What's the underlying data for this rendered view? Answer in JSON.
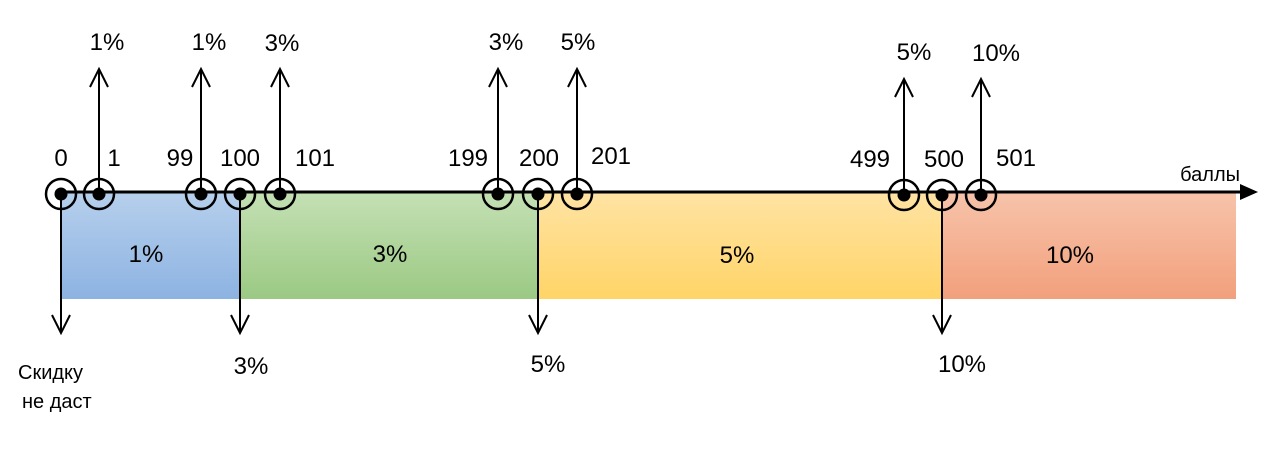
{
  "axis": {
    "label": "баллы"
  },
  "bands": [
    {
      "label": "1%",
      "color_top": "#b6cfec",
      "color_bottom": "#8db3e2"
    },
    {
      "label": "3%",
      "color_top": "#c4e0b4",
      "color_bottom": "#9bc983"
    },
    {
      "label": "5%",
      "color_top": "#ffe3a3",
      "color_bottom": "#ffd467"
    },
    {
      "label": "10%",
      "color_top": "#f7c3aa",
      "color_bottom": "#f2a07c"
    }
  ],
  "points": [
    {
      "value": "0",
      "arrow": "down",
      "result": "Скидку не даст",
      "result_lines": [
        "Скидку",
        "не даст"
      ]
    },
    {
      "value": "1",
      "arrow": "up",
      "result": "1%"
    },
    {
      "value": "99",
      "arrow": "up",
      "result": "1%"
    },
    {
      "value": "100",
      "arrow": "down",
      "result": "3%"
    },
    {
      "value": "101",
      "arrow": "up",
      "result": "3%"
    },
    {
      "value": "199",
      "arrow": "up",
      "result": "3%"
    },
    {
      "value": "200",
      "arrow": "down",
      "result": "5%"
    },
    {
      "value": "201",
      "arrow": "up",
      "result": "5%"
    },
    {
      "value": "499",
      "arrow": "up",
      "result": "5%"
    },
    {
      "value": "500",
      "arrow": "down",
      "result": "10%"
    },
    {
      "value": "501",
      "arrow": "up",
      "result": "10%"
    }
  ]
}
